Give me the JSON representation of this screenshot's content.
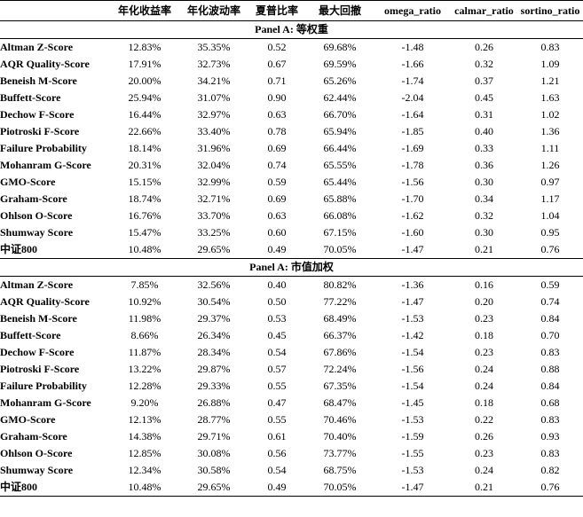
{
  "headers": [
    "",
    "年化收益率",
    "年化波动率",
    "夏普比率",
    "最大回撤",
    "omega_ratio",
    "calmar_ratio",
    "sortino_ratio"
  ],
  "panels": [
    {
      "title": "Panel A: 等权重",
      "rows": [
        [
          "Altman Z-Score",
          "12.83%",
          "35.35%",
          "0.52",
          "69.68%",
          "-1.48",
          "0.26",
          "0.83"
        ],
        [
          "AQR Quality-Score",
          "17.91%",
          "32.73%",
          "0.67",
          "69.59%",
          "-1.66",
          "0.32",
          "1.09"
        ],
        [
          "Beneish M-Score",
          "20.00%",
          "34.21%",
          "0.71",
          "65.26%",
          "-1.74",
          "0.37",
          "1.21"
        ],
        [
          "Buffett-Score",
          "25.94%",
          "31.07%",
          "0.90",
          "62.44%",
          "-2.04",
          "0.45",
          "1.63"
        ],
        [
          "Dechow F-Score",
          "16.44%",
          "32.97%",
          "0.63",
          "66.70%",
          "-1.64",
          "0.31",
          "1.02"
        ],
        [
          "Piotroski F-Score",
          "22.66%",
          "33.40%",
          "0.78",
          "65.94%",
          "-1.85",
          "0.40",
          "1.36"
        ],
        [
          "Failure Probability",
          "18.14%",
          "31.96%",
          "0.69",
          "66.44%",
          "-1.69",
          "0.33",
          "1.11"
        ],
        [
          "Mohanram G-Score",
          "20.31%",
          "32.04%",
          "0.74",
          "65.55%",
          "-1.78",
          "0.36",
          "1.26"
        ],
        [
          "GMO-Score",
          "15.15%",
          "32.99%",
          "0.59",
          "65.44%",
          "-1.56",
          "0.30",
          "0.97"
        ],
        [
          "Graham-Score",
          "18.74%",
          "32.71%",
          "0.69",
          "65.88%",
          "-1.70",
          "0.34",
          "1.17"
        ],
        [
          "Ohlson O-Score",
          "16.76%",
          "33.70%",
          "0.63",
          "66.08%",
          "-1.62",
          "0.32",
          "1.04"
        ],
        [
          "Shumway Score",
          "15.47%",
          "33.25%",
          "0.60",
          "67.15%",
          "-1.60",
          "0.30",
          "0.95"
        ],
        [
          "中证800",
          "10.48%",
          "29.65%",
          "0.49",
          "70.05%",
          "-1.47",
          "0.21",
          "0.76"
        ]
      ]
    },
    {
      "title": "Panel A: 市值加权",
      "rows": [
        [
          "Altman Z-Score",
          "7.85%",
          "32.56%",
          "0.40",
          "80.82%",
          "-1.36",
          "0.16",
          "0.59"
        ],
        [
          "AQR Quality-Score",
          "10.92%",
          "30.54%",
          "0.50",
          "77.22%",
          "-1.47",
          "0.20",
          "0.74"
        ],
        [
          "Beneish M-Score",
          "11.98%",
          "29.37%",
          "0.53",
          "68.49%",
          "-1.53",
          "0.23",
          "0.84"
        ],
        [
          "Buffett-Score",
          "8.66%",
          "26.34%",
          "0.45",
          "66.37%",
          "-1.42",
          "0.18",
          "0.70"
        ],
        [
          "Dechow F-Score",
          "11.87%",
          "28.34%",
          "0.54",
          "67.86%",
          "-1.54",
          "0.23",
          "0.83"
        ],
        [
          "Piotroski F-Score",
          "13.22%",
          "29.87%",
          "0.57",
          "72.24%",
          "-1.56",
          "0.24",
          "0.88"
        ],
        [
          "Failure Probability",
          "12.28%",
          "29.33%",
          "0.55",
          "67.35%",
          "-1.54",
          "0.24",
          "0.84"
        ],
        [
          "Mohanram G-Score",
          "9.20%",
          "26.88%",
          "0.47",
          "68.47%",
          "-1.45",
          "0.18",
          "0.68"
        ],
        [
          "GMO-Score",
          "12.13%",
          "28.77%",
          "0.55",
          "70.46%",
          "-1.53",
          "0.22",
          "0.83"
        ],
        [
          "Graham-Score",
          "14.38%",
          "29.71%",
          "0.61",
          "70.40%",
          "-1.59",
          "0.26",
          "0.93"
        ],
        [
          "Ohlson O-Score",
          "12.85%",
          "30.08%",
          "0.56",
          "73.77%",
          "-1.55",
          "0.23",
          "0.83"
        ],
        [
          "Shumway Score",
          "12.34%",
          "30.58%",
          "0.54",
          "68.75%",
          "-1.53",
          "0.24",
          "0.82"
        ],
        [
          "中证800",
          "10.48%",
          "29.65%",
          "0.49",
          "70.05%",
          "-1.47",
          "0.21",
          "0.76"
        ]
      ]
    }
  ]
}
